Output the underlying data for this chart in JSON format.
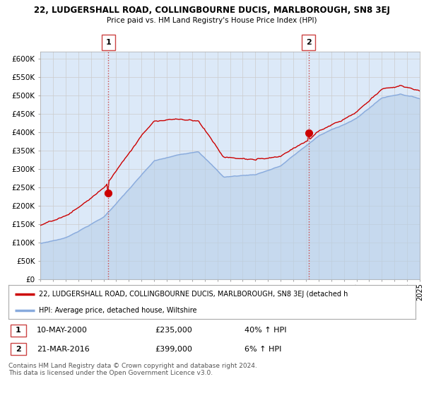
{
  "title1": "22, LUDGERSHALL ROAD, COLLINGBOURNE DUCIS, MARLBOROUGH, SN8 3EJ",
  "title2": "Price paid vs. HM Land Registry's House Price Index (HPI)",
  "legend_label_red": "22, LUDGERSHALL ROAD, COLLINGBOURNE DUCIS, MARLBOROUGH, SN8 3EJ (detached h",
  "legend_label_blue": "HPI: Average price, detached house, Wiltshire",
  "transaction1_date": "10-MAY-2000",
  "transaction1_price": "£235,000",
  "transaction1_hpi": "40% ↑ HPI",
  "transaction1_year": 2000.37,
  "transaction1_value": 235000,
  "transaction2_date": "21-MAR-2016",
  "transaction2_price": "£399,000",
  "transaction2_hpi": "6% ↑ HPI",
  "transaction2_year": 2016.22,
  "transaction2_value": 399000,
  "footer": "Contains HM Land Registry data © Crown copyright and database right 2024.\nThis data is licensed under the Open Government Licence v3.0.",
  "ylim": [
    0,
    620000
  ],
  "yticks": [
    0,
    50000,
    100000,
    150000,
    200000,
    250000,
    300000,
    350000,
    400000,
    450000,
    500000,
    550000,
    600000
  ],
  "start_year": 1995,
  "end_year": 2025,
  "background_color": "#dce9f8",
  "red_color": "#cc0000",
  "blue_color": "#88aadd",
  "blue_fill_color": "#b8cfe8",
  "grid_color": "#cccccc",
  "vline_color": "#cc4444"
}
